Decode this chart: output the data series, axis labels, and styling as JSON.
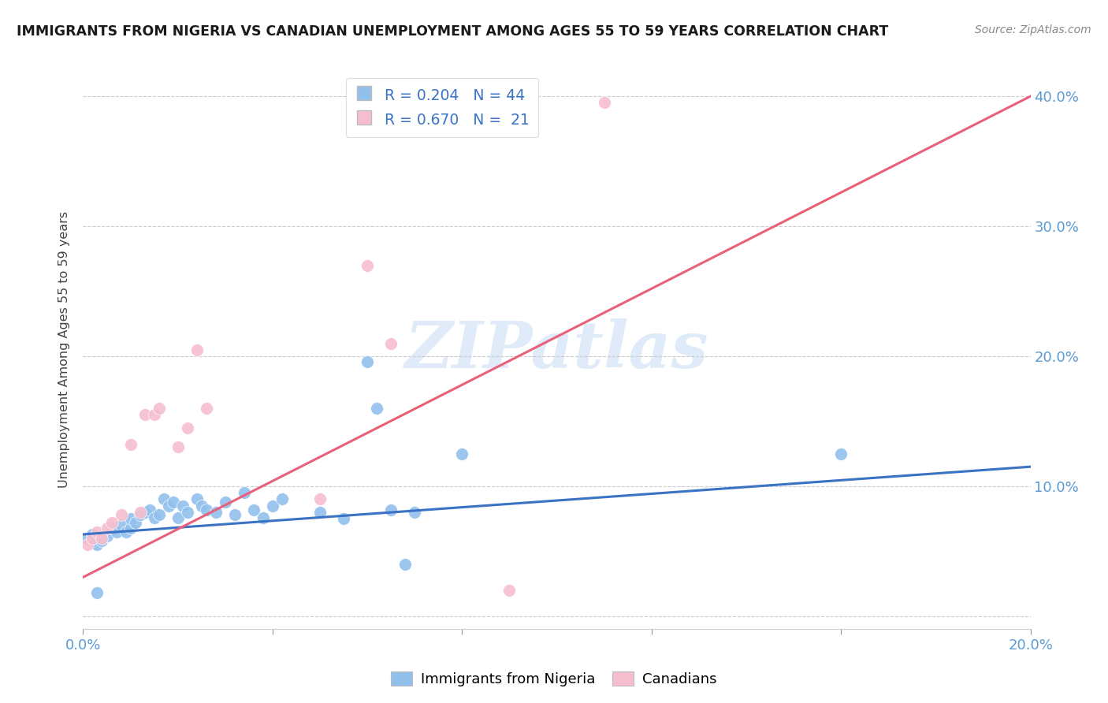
{
  "title": "IMMIGRANTS FROM NIGERIA VS CANADIAN UNEMPLOYMENT AMONG AGES 55 TO 59 YEARS CORRELATION CHART",
  "source": "Source: ZipAtlas.com",
  "ylabel": "Unemployment Among Ages 55 to 59 years",
  "xlim": [
    0.0,
    0.2
  ],
  "ylim": [
    -0.01,
    0.42
  ],
  "blue_color": "#92c0ed",
  "pink_color": "#f5bece",
  "blue_line_color": "#3a72c4",
  "pink_line_color": "#e8607a",
  "legend_r_blue": "R = 0.204",
  "legend_n_blue": "N = 44",
  "legend_r_pink": "R = 0.670",
  "legend_n_pink": "N =  21",
  "watermark": "ZIPatlas",
  "blue_scatter_x": [
    0.001,
    0.002,
    0.003,
    0.004,
    0.005,
    0.006,
    0.007,
    0.008,
    0.009,
    0.01,
    0.01,
    0.011,
    0.012,
    0.013,
    0.014,
    0.015,
    0.016,
    0.017,
    0.018,
    0.019,
    0.02,
    0.021,
    0.022,
    0.024,
    0.025,
    0.026,
    0.028,
    0.03,
    0.032,
    0.034,
    0.036,
    0.038,
    0.04,
    0.042,
    0.05,
    0.055,
    0.06,
    0.062,
    0.065,
    0.068,
    0.07,
    0.08,
    0.16,
    0.003
  ],
  "blue_scatter_y": [
    0.06,
    0.063,
    0.055,
    0.058,
    0.062,
    0.068,
    0.065,
    0.07,
    0.065,
    0.068,
    0.075,
    0.072,
    0.078,
    0.08,
    0.082,
    0.076,
    0.078,
    0.09,
    0.085,
    0.088,
    0.076,
    0.085,
    0.08,
    0.09,
    0.085,
    0.082,
    0.08,
    0.088,
    0.078,
    0.095,
    0.082,
    0.076,
    0.085,
    0.09,
    0.08,
    0.075,
    0.196,
    0.16,
    0.082,
    0.04,
    0.08,
    0.125,
    0.125,
    0.018
  ],
  "pink_scatter_x": [
    0.001,
    0.002,
    0.003,
    0.004,
    0.005,
    0.006,
    0.008,
    0.01,
    0.012,
    0.013,
    0.015,
    0.016,
    0.02,
    0.022,
    0.024,
    0.026,
    0.05,
    0.06,
    0.065,
    0.09,
    0.11
  ],
  "pink_scatter_y": [
    0.055,
    0.06,
    0.065,
    0.06,
    0.068,
    0.072,
    0.078,
    0.132,
    0.08,
    0.155,
    0.155,
    0.16,
    0.13,
    0.145,
    0.205,
    0.16,
    0.09,
    0.27,
    0.21,
    0.02,
    0.395
  ],
  "blue_trend_x": [
    0.0,
    0.2
  ],
  "blue_trend_y": [
    0.063,
    0.115
  ],
  "pink_trend_x": [
    0.0,
    0.2
  ],
  "pink_trend_y": [
    0.03,
    0.4
  ]
}
